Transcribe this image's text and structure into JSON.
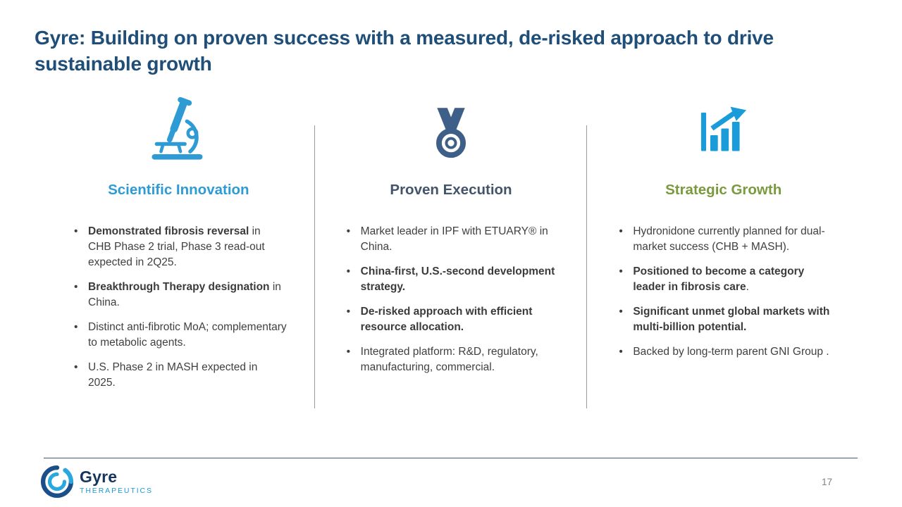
{
  "title": "Gyre: Building on proven success with a measured, de-risked approach to drive sustainable growth",
  "title_color": "#1F4E79",
  "columns": [
    {
      "heading": "Scientific Innovation",
      "heading_color": "#2E9BD5",
      "icon": "microscope-icon",
      "icon_color": "#2E9BD5",
      "bullets": [
        {
          "segments": [
            {
              "text": "Demonstrated fibrosis reversal",
              "bold": true
            },
            {
              "text": " in CHB Phase 2 trial, Phase 3 read-out expected in 2Q25.",
              "bold": false
            }
          ]
        },
        {
          "segments": [
            {
              "text": "Breakthrough Therapy designation",
              "bold": true
            },
            {
              "text": " in China.",
              "bold": false
            }
          ]
        },
        {
          "segments": [
            {
              "text": "Distinct anti-fibrotic MoA; complementary to metabolic agents.",
              "bold": false
            }
          ]
        },
        {
          "segments": [
            {
              "text": "U.S. Phase 2 in MASH expected in 2025.",
              "bold": false
            }
          ]
        }
      ]
    },
    {
      "heading": "Proven Execution",
      "heading_color": "#44546A",
      "icon": "medal-icon",
      "icon_color": "#3D5F88",
      "bullets": [
        {
          "segments": [
            {
              "text": "Market leader in IPF with ETUARY® in China.",
              "bold": false
            }
          ]
        },
        {
          "segments": [
            {
              "text": "China-first, U.S.-second development strategy.",
              "bold": true
            }
          ]
        },
        {
          "segments": [
            {
              "text": "De-risked approach with efficient resource allocation.",
              "bold": true
            }
          ]
        },
        {
          "segments": [
            {
              "text": "Integrated platform: R&D, regulatory, manufacturing, commercial.",
              "bold": false
            }
          ]
        }
      ]
    },
    {
      "heading": "Strategic Growth",
      "heading_color": "#7A9A3D",
      "icon": "growth-chart-icon",
      "icon_color": "#199CD9",
      "bullets": [
        {
          "segments": [
            {
              "text": "Hydronidone currently planned for dual-market success (CHB + MASH).",
              "bold": false
            }
          ]
        },
        {
          "segments": [
            {
              "text": "Positioned to become a category leader in fibrosis care",
              "bold": true
            },
            {
              "text": ".",
              "bold": false
            }
          ]
        },
        {
          "segments": [
            {
              "text": "Significant unmet global markets with multi-billion potential.",
              "bold": true
            }
          ]
        },
        {
          "segments": [
            {
              "text": "Backed by long-term parent GNI Group .",
              "bold": false
            }
          ]
        }
      ]
    }
  ],
  "footer": {
    "page_number": "17",
    "logo_name": "Gyre",
    "logo_subtitle": "THERAPEUTICS",
    "logo_navy": "#16355C",
    "logo_teal": "#1C9AD6"
  }
}
